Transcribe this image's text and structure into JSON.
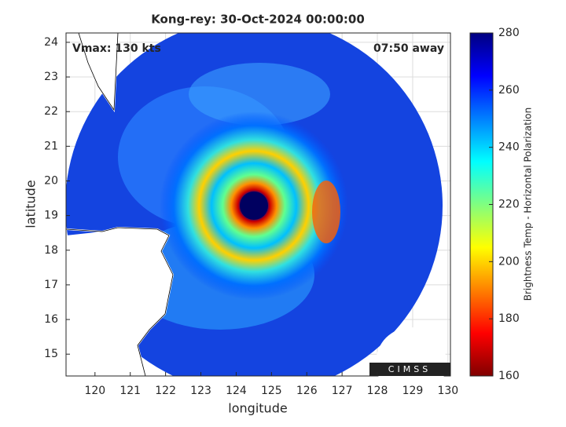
{
  "chart_data": {
    "type": "image",
    "title": "Kong-rey: 30-Oct-2024 00:00:00",
    "x_label": "longitude",
    "y_label": "latitude",
    "annotations": [
      "Vmax: 130 kts",
      "07:50 away"
    ],
    "logo_text": "CIMSS",
    "xlim": [
      119.18,
      130.07
    ],
    "xticks": [
      120,
      121,
      122,
      123,
      124,
      125,
      126,
      127,
      128,
      129,
      130
    ],
    "ylim": [
      14.37,
      24.27
    ],
    "yticks": [
      15,
      16,
      17,
      18,
      19,
      20,
      21,
      22,
      23,
      24
    ],
    "grid": true,
    "colorbar": {
      "label": "Brightness Temp - Horizontal Polarization",
      "lim": [
        160,
        280
      ],
      "ticks": [
        160,
        180,
        200,
        220,
        240,
        260,
        280
      ],
      "colormap": [
        "#800000",
        "#ff0000",
        "#ff8000",
        "#ffff00",
        "#80ff80",
        "#00ffff",
        "#0080ff",
        "#0000ff",
        "#000080"
      ]
    }
  }
}
